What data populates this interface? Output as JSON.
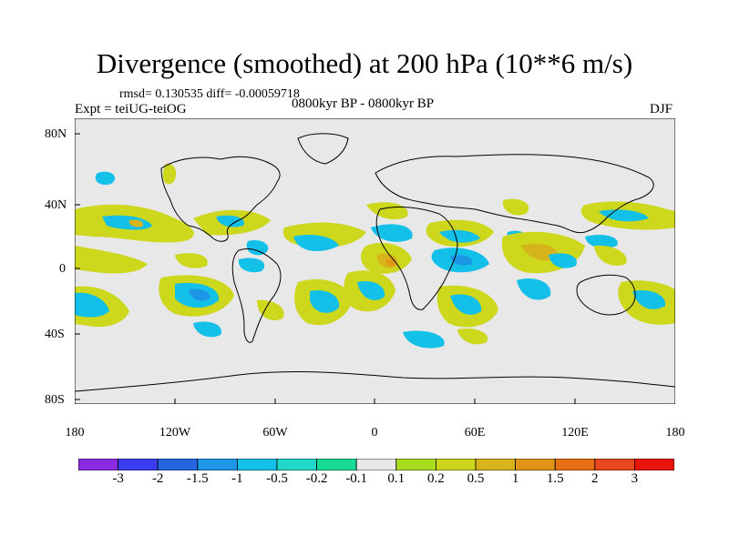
{
  "title": "Divergence (smoothed) at 200 hPa (10**6 m/s)",
  "stats": "rmsd= 0.130535 diff= -0.00059718",
  "experiment": "Expt = teiUG-teiOG",
  "period": "0800kyr BP - 0800kyr BP",
  "season": "DJF",
  "latitude_labels": [
    "80N",
    "40N",
    "0",
    "40S",
    "80S"
  ],
  "longitude_labels": [
    "180",
    "120W",
    "60W",
    "0",
    "60E",
    "120E",
    "180"
  ],
  "colorbar": {
    "labels": [
      "-3",
      "-2",
      "-1.5",
      "-1",
      "-0.5",
      "-0.2",
      "-0.1",
      "0.1",
      "0.2",
      "0.5",
      "1",
      "1.5",
      "2",
      "3"
    ],
    "colors": [
      "#8a2be2",
      "#3c3cf0",
      "#2566e0",
      "#1e96e6",
      "#12c0e8",
      "#22d8c8",
      "#18dc96",
      "#e8e8e8",
      "#a8dc1e",
      "#cdd71c",
      "#d8b41c",
      "#e09614",
      "#e87014",
      "#e8461c",
      "#e8140a"
    ]
  },
  "colors": {
    "ocean_background": "#e8e8e8",
    "coastline": "#000000"
  }
}
